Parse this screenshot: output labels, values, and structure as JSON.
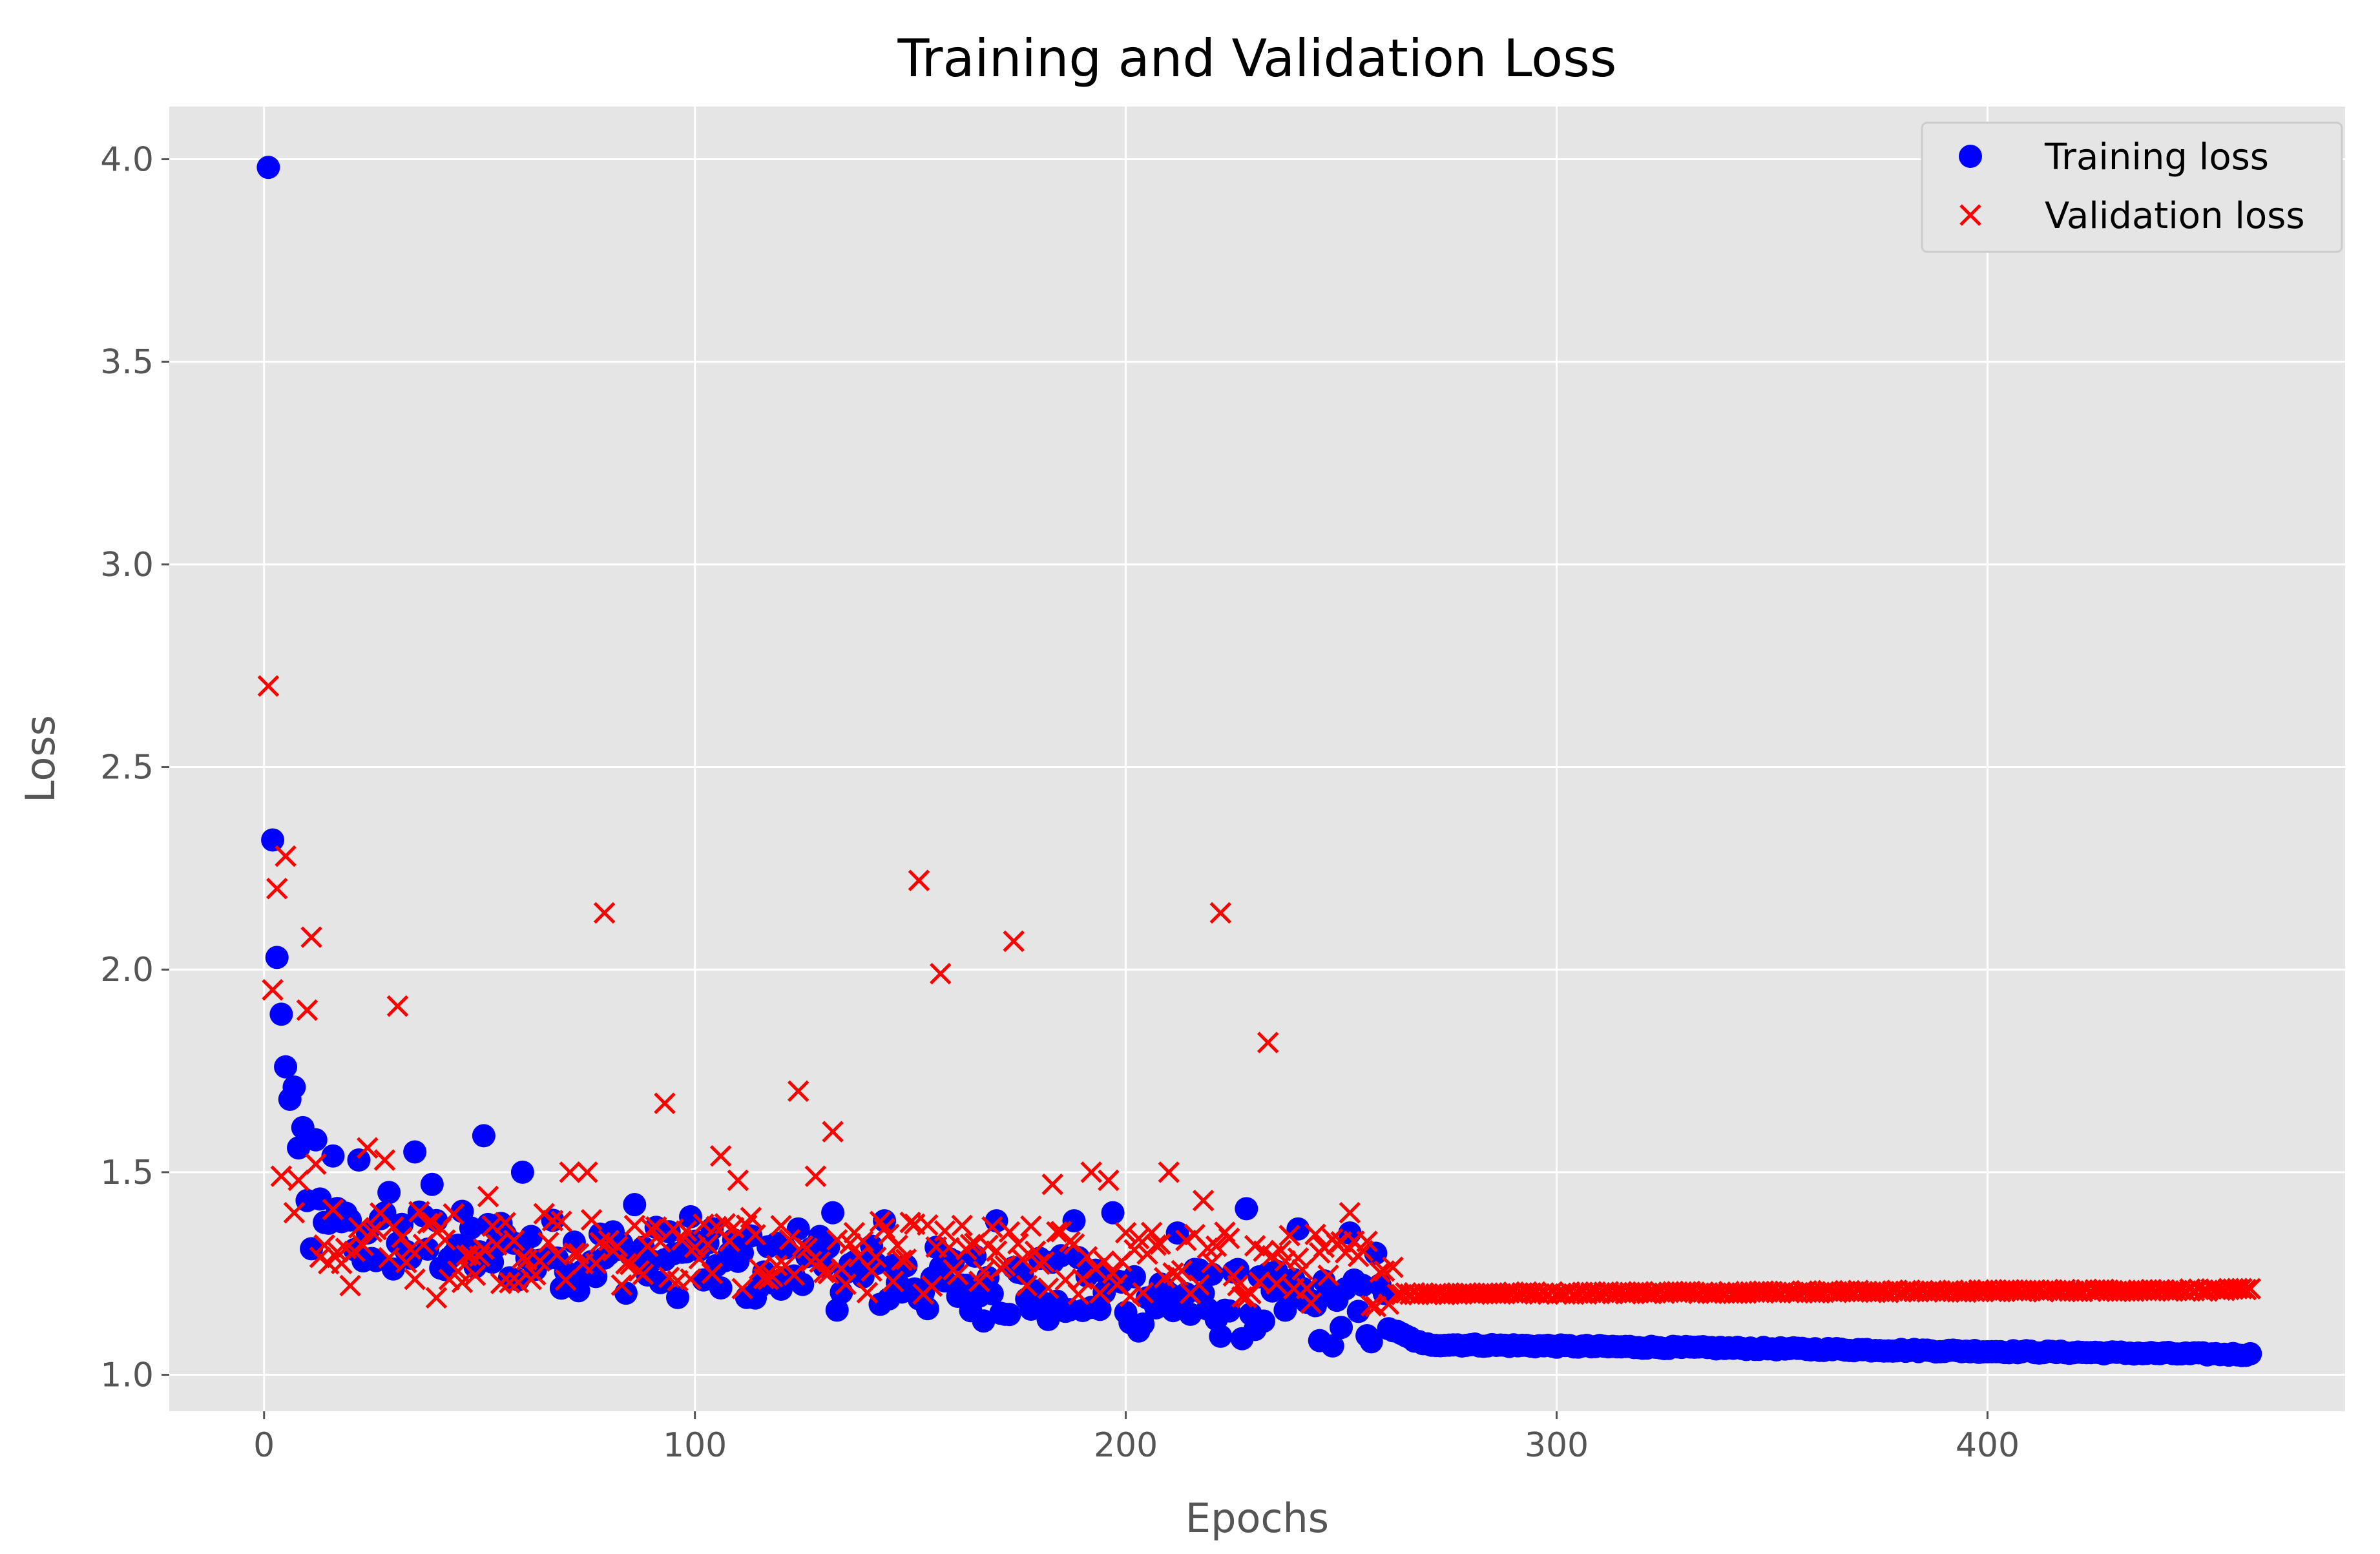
{
  "chart_data": {
    "type": "scatter",
    "title": "Training and Validation Loss",
    "xlabel": "Epochs",
    "ylabel": "Loss",
    "xlim": [
      -22,
      483
    ],
    "ylim": [
      0.91,
      4.13
    ],
    "xticks": [
      0,
      100,
      200,
      300,
      400
    ],
    "yticks": [
      1.0,
      1.5,
      2.0,
      2.5,
      3.0,
      3.5,
      4.0
    ],
    "xtick_labels": [
      "0",
      "100",
      "200",
      "300",
      "400"
    ],
    "ytick_labels": [
      "1.0",
      "1.5",
      "2.0",
      "2.5",
      "3.0",
      "3.5",
      "4.0"
    ],
    "grid": true,
    "legend_position": "top-right",
    "n_epochs": 461,
    "series": [
      {
        "name": "Training loss",
        "marker": "circle",
        "color": "#0000ff",
        "notable_points": [
          [
            1,
            3.98
          ],
          [
            2,
            2.32
          ],
          [
            3,
            2.03
          ],
          [
            4,
            1.89
          ],
          [
            5,
            1.76
          ],
          [
            6,
            1.68
          ],
          [
            7,
            1.71
          ],
          [
            8,
            1.56
          ],
          [
            9,
            1.61
          ],
          [
            10,
            1.43
          ],
          [
            12,
            1.58
          ],
          [
            16,
            1.54
          ],
          [
            22,
            1.53
          ],
          [
            29,
            1.45
          ],
          [
            35,
            1.55
          ],
          [
            39,
            1.47
          ],
          [
            51,
            1.59
          ],
          [
            60,
            1.5
          ],
          [
            86,
            1.42
          ],
          [
            99,
            1.39
          ],
          [
            124,
            1.36
          ],
          [
            132,
            1.4
          ],
          [
            144,
            1.38
          ],
          [
            170,
            1.38
          ],
          [
            188,
            1.38
          ],
          [
            197,
            1.4
          ],
          [
            212,
            1.35
          ],
          [
            228,
            1.41
          ],
          [
            240,
            1.36
          ],
          [
            252,
            1.35
          ],
          [
            258,
            1.3
          ]
        ],
        "segments": [
          {
            "x_start": 10,
            "x_end": 260,
            "base_start": 1.32,
            "base_end": 1.12,
            "spread": 0.09
          },
          {
            "x_start": 260,
            "x_end": 268,
            "base_start": 1.12,
            "base_end": 1.08,
            "spread": 0.0
          },
          {
            "x_start": 268,
            "x_end": 461,
            "base_start": 1.075,
            "base_end": 1.05,
            "spread": 0.0
          }
        ]
      },
      {
        "name": "Validation loss",
        "marker": "x",
        "color": "#ff0000",
        "notable_points": [
          [
            1,
            2.7
          ],
          [
            2,
            1.95
          ],
          [
            3,
            2.2
          ],
          [
            4,
            1.49
          ],
          [
            5,
            2.28
          ],
          [
            7,
            1.4
          ],
          [
            8,
            1.48
          ],
          [
            10,
            1.9
          ],
          [
            11,
            2.08
          ],
          [
            12,
            1.52
          ],
          [
            14,
            1.32
          ],
          [
            20,
            1.22
          ],
          [
            24,
            1.56
          ],
          [
            28,
            1.53
          ],
          [
            31,
            1.91
          ],
          [
            40,
            1.19
          ],
          [
            52,
            1.44
          ],
          [
            71,
            1.5
          ],
          [
            75,
            1.5
          ],
          [
            79,
            2.14
          ],
          [
            93,
            1.67
          ],
          [
            106,
            1.54
          ],
          [
            110,
            1.48
          ],
          [
            124,
            1.7
          ],
          [
            128,
            1.49
          ],
          [
            132,
            1.6
          ],
          [
            152,
            2.22
          ],
          [
            157,
            1.99
          ],
          [
            174,
            2.07
          ],
          [
            183,
            1.47
          ],
          [
            192,
            1.5
          ],
          [
            196,
            1.48
          ],
          [
            210,
            1.5
          ],
          [
            218,
            1.43
          ],
          [
            222,
            2.14
          ],
          [
            233,
            1.82
          ],
          [
            252,
            1.4
          ]
        ],
        "segments": [
          {
            "x_start": 10,
            "x_end": 262,
            "base_start": 1.3,
            "base_end": 1.23,
            "spread": 0.09
          },
          {
            "x_start": 262,
            "x_end": 461,
            "base_start": 1.2,
            "base_end": 1.21,
            "spread": 0.0
          }
        ]
      }
    ]
  }
}
